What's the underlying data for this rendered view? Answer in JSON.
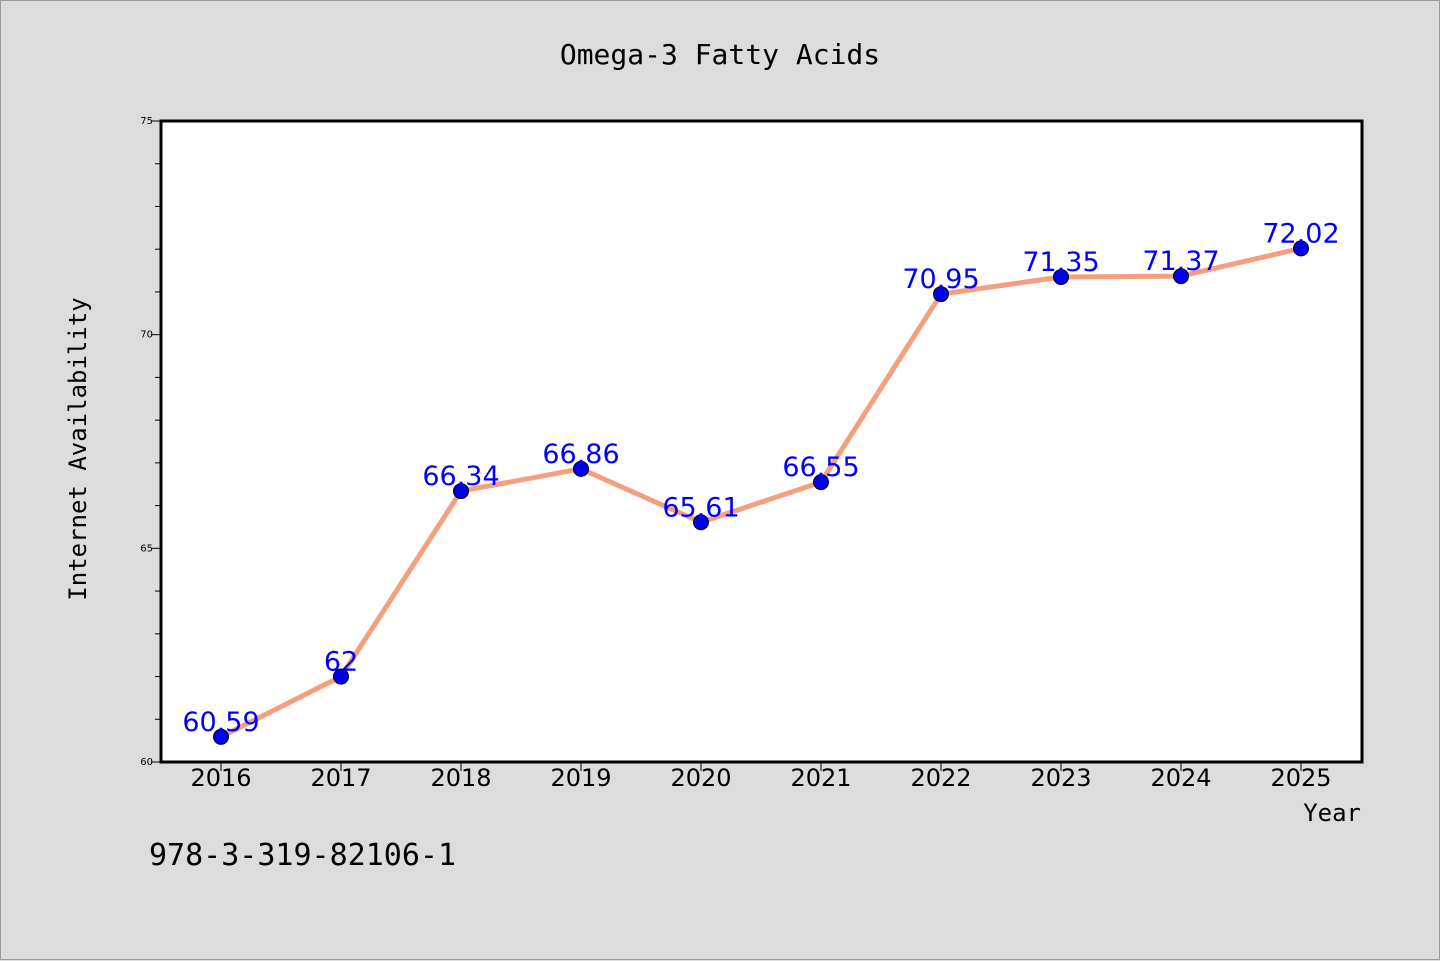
{
  "chart_data": {
    "type": "line",
    "title": "Omega-3 Fatty Acids",
    "xlabel": "Year",
    "ylabel": "Internet Availability",
    "x": [
      "2016",
      "2017",
      "2018",
      "2019",
      "2020",
      "2021",
      "2022",
      "2023",
      "2024",
      "2025"
    ],
    "series": [
      {
        "values": [
          60.59,
          62,
          66.34,
          66.86,
          65.61,
          66.55,
          70.95,
          71.35,
          71.37,
          72.02
        ],
        "labels": [
          "60.59",
          "62",
          "66.34",
          "66.86",
          "65.61",
          "66.55",
          "70.95",
          "71.35",
          "71.37",
          "72.02"
        ],
        "line_color": "#f4a07e",
        "marker_color": "#0000ee",
        "label_color": "#0000ff"
      }
    ],
    "ylim": [
      60,
      75
    ],
    "yticks": [
      "60",
      "65",
      "70",
      "75"
    ],
    "grid": false,
    "legend": "none"
  },
  "footer": {
    "code": "978-3-319-82106-1"
  }
}
